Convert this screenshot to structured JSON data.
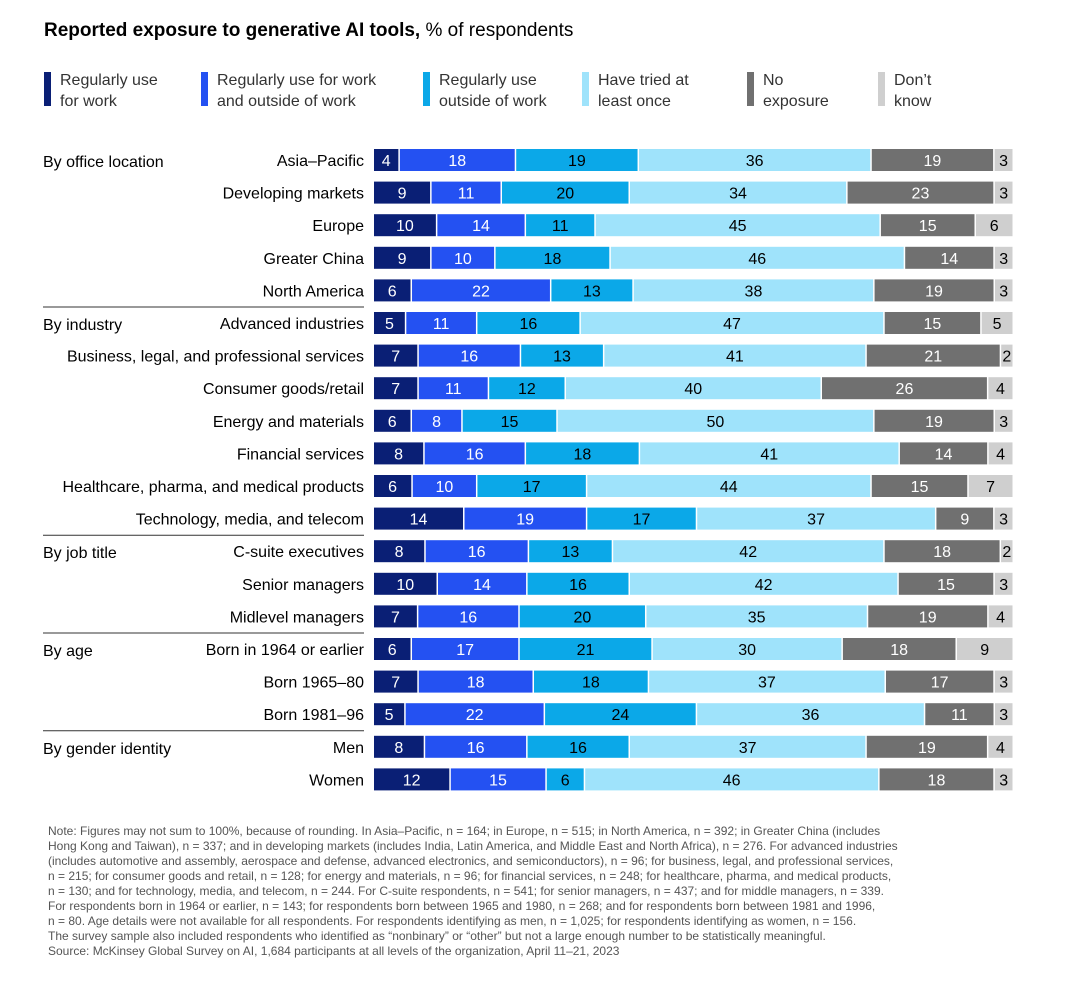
{
  "title_bold": "Reported exposure to generative AI tools,",
  "title_rest": " % of respondents",
  "colors": [
    "#0a1f75",
    "#2451f2",
    "#0ba8e8",
    "#9fe3fb",
    "#707070",
    "#cfcfcf"
  ],
  "legend": [
    {
      "label": "Regularly use\nfor work"
    },
    {
      "label": "Regularly use for work\nand outside of work"
    },
    {
      "label": "Regularly use\noutside of work"
    },
    {
      "label": "Have tried at\nleast once"
    },
    {
      "label": "No\nexposure"
    },
    {
      "label": "Don’t\nknow"
    }
  ],
  "chart_data": {
    "type": "bar",
    "stacked": true,
    "orientation": "horizontal",
    "unit": "% of respondents",
    "series_names": [
      "Regularly use for work",
      "Regularly use for work and outside of work",
      "Regularly use outside of work",
      "Have tried at least once",
      "No exposure",
      "Don’t know"
    ],
    "groups": [
      {
        "name": "By office location",
        "rows": [
          {
            "label": "Asia–Pacific",
            "values": [
              4,
              18,
              19,
              36,
              19,
              3
            ]
          },
          {
            "label": "Developing markets",
            "values": [
              9,
              11,
              20,
              34,
              23,
              3
            ]
          },
          {
            "label": "Europe",
            "values": [
              10,
              14,
              11,
              45,
              15,
              6
            ]
          },
          {
            "label": "Greater China",
            "values": [
              9,
              10,
              18,
              46,
              14,
              3
            ]
          },
          {
            "label": "North America",
            "values": [
              6,
              22,
              13,
              38,
              19,
              3
            ]
          }
        ]
      },
      {
        "name": "By industry",
        "rows": [
          {
            "label": "Advanced industries",
            "values": [
              5,
              11,
              16,
              47,
              15,
              5
            ]
          },
          {
            "label": "Business, legal, and professional services",
            "values": [
              7,
              16,
              13,
              41,
              21,
              2
            ]
          },
          {
            "label": "Consumer goods/retail",
            "values": [
              7,
              11,
              12,
              40,
              26,
              4
            ]
          },
          {
            "label": "Energy and materials",
            "values": [
              6,
              8,
              15,
              50,
              19,
              3
            ]
          },
          {
            "label": "Financial services",
            "values": [
              8,
              16,
              18,
              41,
              14,
              4
            ]
          },
          {
            "label": "Healthcare, pharma, and medical products",
            "values": [
              6,
              10,
              17,
              44,
              15,
              7
            ]
          },
          {
            "label": "Technology, media, and telecom",
            "values": [
              14,
              19,
              17,
              37,
              9,
              3
            ]
          }
        ]
      },
      {
        "name": "By job title",
        "rows": [
          {
            "label": "C-suite executives",
            "values": [
              8,
              16,
              13,
              42,
              18,
              2
            ]
          },
          {
            "label": "Senior managers",
            "values": [
              10,
              14,
              16,
              42,
              15,
              3
            ]
          },
          {
            "label": "Midlevel managers",
            "values": [
              7,
              16,
              20,
              35,
              19,
              4
            ]
          }
        ]
      },
      {
        "name": "By age",
        "rows": [
          {
            "label": "Born in 1964 or earlier",
            "values": [
              6,
              17,
              21,
              30,
              18,
              9
            ]
          },
          {
            "label": "Born 1965–80",
            "values": [
              7,
              18,
              18,
              37,
              17,
              3
            ]
          },
          {
            "label": "Born 1981–96",
            "values": [
              5,
              22,
              24,
              36,
              11,
              3
            ]
          }
        ]
      },
      {
        "name": "By gender identity",
        "rows": [
          {
            "label": "Men",
            "values": [
              8,
              16,
              16,
              37,
              19,
              4
            ]
          },
          {
            "label": "Women",
            "values": [
              12,
              15,
              6,
              46,
              18,
              3
            ]
          }
        ]
      }
    ]
  },
  "note_lines": [
    "Note: Figures may not sum to 100%, because of rounding. In Asia–Pacific, n = 164; in Europe, n = 515; in North America, n = 392; in Greater China (includes",
    "Hong Kong and Taiwan), n = 337; and in developing markets (includes India, Latin America, and Middle East and North Africa), n = 276. For advanced industries",
    "(includes automotive and assembly, aerospace and defense, advanced electronics, and semiconductors), n = 96; for business, legal, and professional services,",
    "n = 215; for consumer goods and retail, n = 128; for energy and materials, n = 96; for financial services, n = 248; for healthcare, pharma, and medical products,",
    "n = 130; and for technology, media, and telecom, n = 244. For C-suite respondents, n = 541; for senior managers, n = 437; and for middle managers, n = 339.",
    "For respondents born in 1964 or earlier, n = 143; for respondents born between 1965 and 1980, n = 268; and for respondents born between 1981 and 1996,",
    "n = 80. Age details were not available for all respondents. For respondents identifying as men, n = 1,025; for respondents identifying as women, n = 156.",
    "The survey sample also included respondents who identified as “nonbinary” or “other” but not a large enough number to be statistically meaningful.",
    "Source: McKinsey Global Survey on AI, 1,684 participants at all levels of the organization, April 11–21, 2023"
  ]
}
